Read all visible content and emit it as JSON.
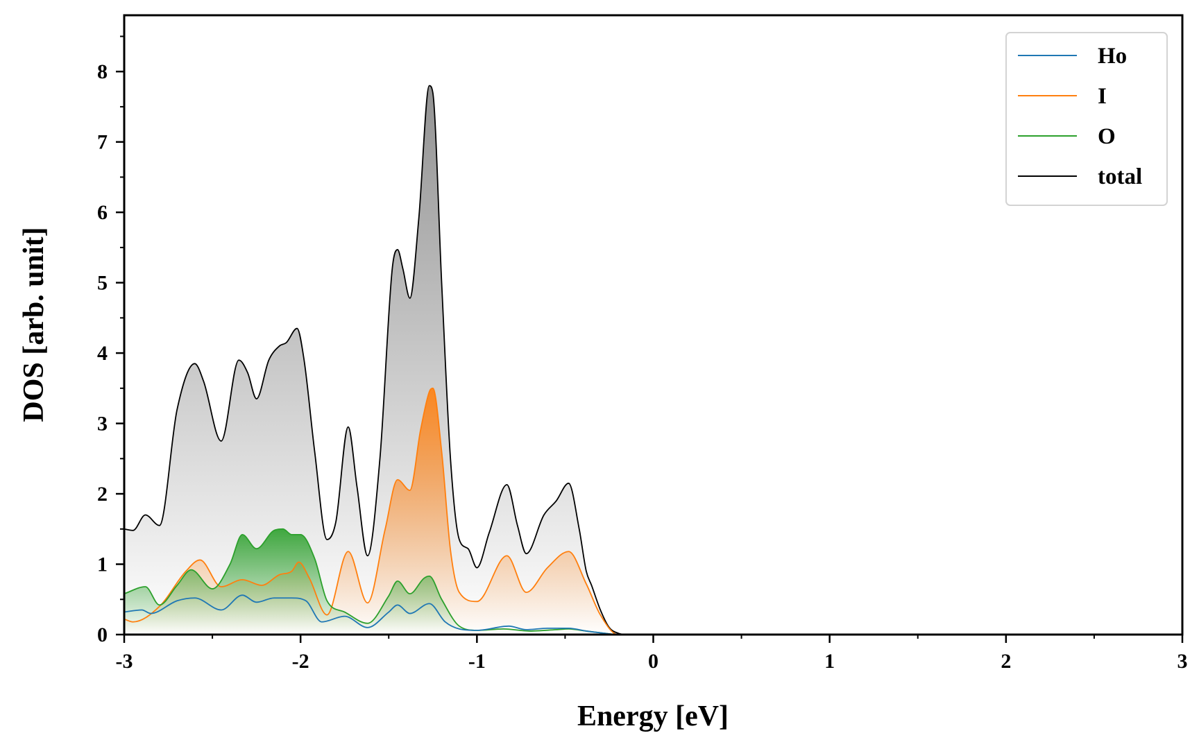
{
  "chart_data": {
    "type": "area",
    "xlabel": "Energy [eV]",
    "ylabel": "DOS [arb. unit]",
    "xlim": [
      -3,
      3
    ],
    "ylim": [
      0,
      8.8
    ],
    "xticks": [
      -3,
      -2,
      -1,
      0,
      1,
      2,
      3
    ],
    "xtick_labels": [
      "-3",
      "-2",
      "-1",
      "0",
      "1",
      "2",
      "3"
    ],
    "yticks": [
      0,
      1,
      2,
      3,
      4,
      5,
      6,
      7,
      8
    ],
    "ytick_labels": [
      "0",
      "1",
      "2",
      "3",
      "4",
      "5",
      "6",
      "7",
      "8"
    ],
    "grid": false,
    "legend_position": "top-right",
    "series": [
      {
        "name": "Ho",
        "color": "#1f77b4",
        "filled": false,
        "x": [
          -3.0,
          -2.9,
          -2.85,
          -2.7,
          -2.6,
          -2.45,
          -2.33,
          -2.25,
          -2.15,
          -2.05,
          -1.97,
          -1.88,
          -1.75,
          -1.62,
          -1.5,
          -1.45,
          -1.38,
          -1.27,
          -1.18,
          -1.1,
          -1.0,
          -0.82,
          -0.72,
          -0.6,
          -0.48,
          -0.38,
          -0.28,
          -0.2,
          0.0,
          3.0
        ],
        "values": [
          0.32,
          0.35,
          0.3,
          0.48,
          0.52,
          0.35,
          0.56,
          0.46,
          0.52,
          0.52,
          0.48,
          0.18,
          0.26,
          0.1,
          0.32,
          0.42,
          0.3,
          0.44,
          0.18,
          0.08,
          0.06,
          0.12,
          0.07,
          0.09,
          0.09,
          0.05,
          0.02,
          0.0,
          0.0,
          0.0
        ]
      },
      {
        "name": "I",
        "color": "#ff7f0e",
        "filled": true,
        "x": [
          -3.0,
          -2.95,
          -2.8,
          -2.65,
          -2.57,
          -2.45,
          -2.33,
          -2.22,
          -2.12,
          -2.05,
          -2.01,
          -1.95,
          -1.85,
          -1.73,
          -1.62,
          -1.52,
          -1.45,
          -1.38,
          -1.32,
          -1.27,
          -1.25,
          -1.2,
          -1.15,
          -1.1,
          -1.0,
          -0.83,
          -0.72,
          -0.6,
          -0.48,
          -0.38,
          -0.3,
          -0.2,
          0.0,
          3.0
        ],
        "values": [
          0.22,
          0.18,
          0.4,
          0.9,
          1.06,
          0.68,
          0.78,
          0.7,
          0.85,
          0.9,
          1.03,
          0.8,
          0.28,
          1.18,
          0.45,
          1.5,
          2.2,
          2.05,
          2.9,
          3.45,
          3.5,
          2.6,
          1.2,
          0.6,
          0.47,
          1.12,
          0.6,
          0.95,
          1.18,
          0.72,
          0.28,
          0.0,
          0.0,
          0.0
        ]
      },
      {
        "name": "O",
        "color": "#2ca02c",
        "filled": true,
        "x": [
          -3.0,
          -2.88,
          -2.8,
          -2.7,
          -2.62,
          -2.5,
          -2.4,
          -2.33,
          -2.25,
          -2.15,
          -2.1,
          -2.05,
          -2.0,
          -1.92,
          -1.85,
          -1.75,
          -1.62,
          -1.5,
          -1.45,
          -1.38,
          -1.3,
          -1.27,
          -1.2,
          -1.1,
          -1.0,
          -0.85,
          -0.7,
          -0.55,
          -0.48,
          -0.38,
          -0.28,
          -0.2,
          0.0,
          3.0
        ],
        "values": [
          0.58,
          0.68,
          0.42,
          0.7,
          0.92,
          0.65,
          1.0,
          1.42,
          1.22,
          1.48,
          1.5,
          1.42,
          1.42,
          1.08,
          0.48,
          0.32,
          0.16,
          0.55,
          0.76,
          0.58,
          0.8,
          0.83,
          0.5,
          0.12,
          0.06,
          0.08,
          0.05,
          0.07,
          0.08,
          0.05,
          0.02,
          0.0,
          0.0,
          0.0
        ]
      },
      {
        "name": "total",
        "color": "#000000",
        "filled": true,
        "x": [
          -3.0,
          -2.95,
          -2.88,
          -2.8,
          -2.7,
          -2.6,
          -2.55,
          -2.45,
          -2.35,
          -2.3,
          -2.25,
          -2.18,
          -2.12,
          -2.08,
          -2.02,
          -1.98,
          -1.92,
          -1.85,
          -1.8,
          -1.73,
          -1.68,
          -1.62,
          -1.55,
          -1.48,
          -1.45,
          -1.42,
          -1.38,
          -1.33,
          -1.27,
          -1.25,
          -1.2,
          -1.15,
          -1.1,
          -1.05,
          -1.0,
          -0.93,
          -0.83,
          -0.77,
          -0.72,
          -0.62,
          -0.55,
          -0.48,
          -0.42,
          -0.38,
          -0.35,
          -0.3,
          -0.25,
          -0.2,
          -0.15,
          0.0,
          3.0
        ],
        "values": [
          1.5,
          1.48,
          1.7,
          1.55,
          3.2,
          3.85,
          3.6,
          2.75,
          3.9,
          3.72,
          3.35,
          3.9,
          4.1,
          4.15,
          4.35,
          3.9,
          2.6,
          1.35,
          1.6,
          2.95,
          2.1,
          1.12,
          2.5,
          5.2,
          5.47,
          5.2,
          4.78,
          5.9,
          7.8,
          7.7,
          5.0,
          2.5,
          1.35,
          1.22,
          0.95,
          1.45,
          2.13,
          1.55,
          1.15,
          1.7,
          1.9,
          2.15,
          1.5,
          0.9,
          0.7,
          0.35,
          0.1,
          0.02,
          0.0,
          0.0,
          0.0
        ]
      }
    ]
  }
}
